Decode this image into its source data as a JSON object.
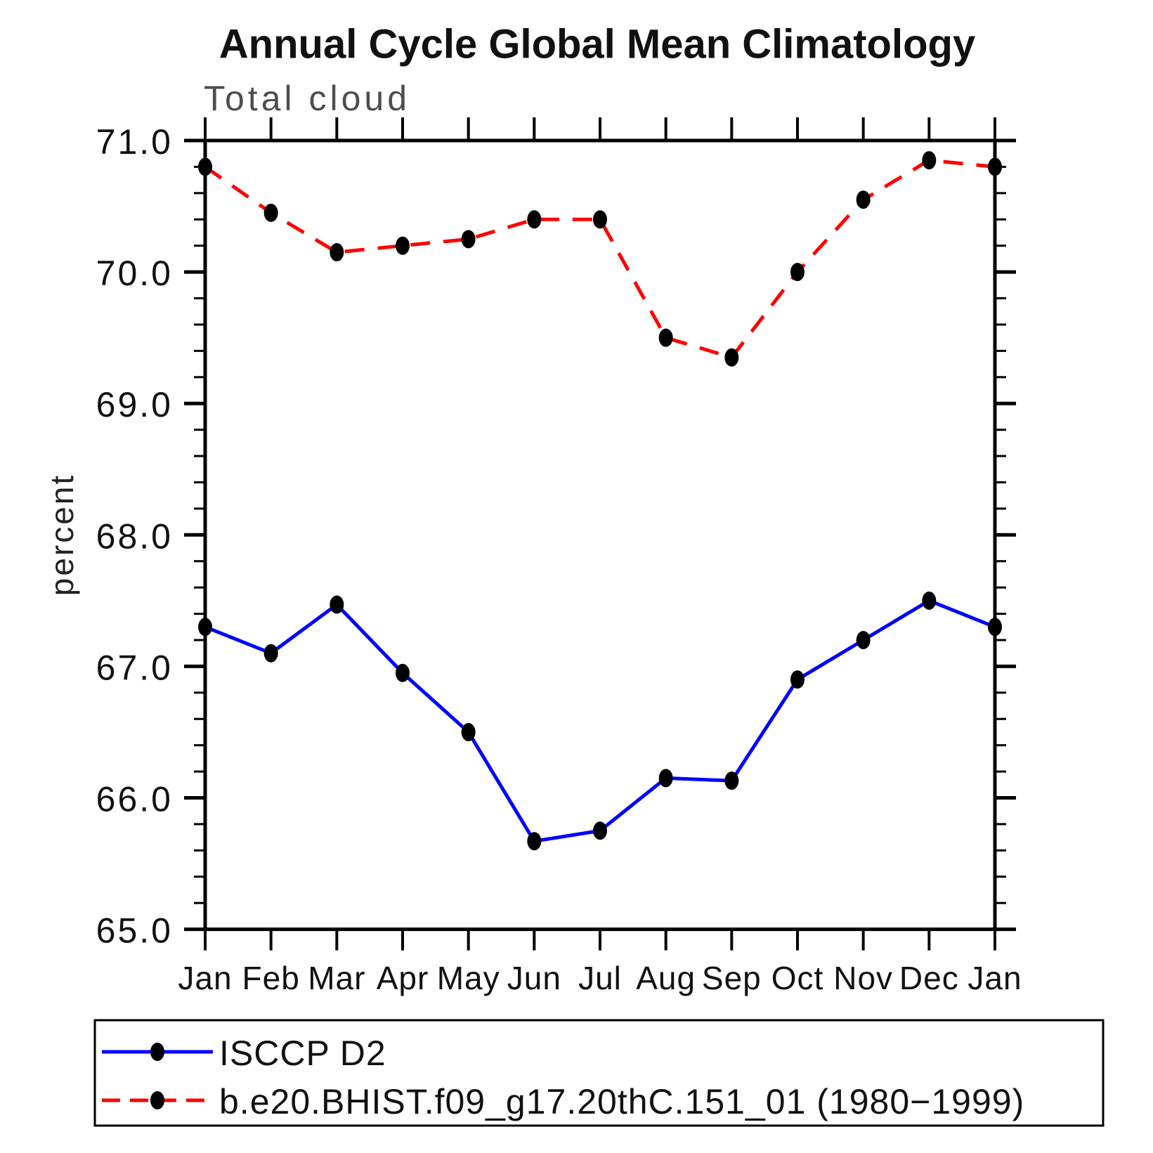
{
  "title": "Annual Cycle Global Mean Climatology",
  "subtitle": "Total cloud",
  "ylabel": "percent",
  "colors": {
    "obs": "#0000ff",
    "model": "#ff0000",
    "marker": "#000000",
    "axis": "#000000",
    "subtitle_gray": "#4d4d4d"
  },
  "legend": [
    {
      "label": "ISCCP D2",
      "color": "#0000ff",
      "style": "solid",
      "marker": "filled-circle"
    },
    {
      "label": "b.e20.BHIST.f09_g17.20thC.151_01 (1980−1999)",
      "color": "#ff0000",
      "style": "dashed",
      "marker": "filled-circle"
    }
  ],
  "chart_data": {
    "type": "line",
    "title": "Annual Cycle Global Mean Climatology",
    "subtitle": "Total cloud",
    "xlabel": "",
    "ylabel": "percent",
    "x_tick_labels": [
      "Jan",
      "Feb",
      "Mar",
      "Apr",
      "May",
      "Jun",
      "Jul",
      "Aug",
      "Sep",
      "Oct",
      "Nov",
      "Dec",
      "Jan"
    ],
    "y_ticks": [
      65.0,
      66.0,
      67.0,
      68.0,
      69.0,
      70.0,
      71.0
    ],
    "y_tick_labels": [
      "65.0",
      "66.0",
      "67.0",
      "68.0",
      "69.0",
      "70.0",
      "71.0"
    ],
    "ylim": [
      65.0,
      71.0
    ],
    "y_minor_step": 0.2,
    "grid": false,
    "legend_position": "bottom",
    "series": [
      {
        "name": "ISCCP D2",
        "color": "#0000ff",
        "line_style": "solid",
        "marker": "circle",
        "values": [
          67.3,
          67.1,
          67.47,
          66.95,
          66.5,
          65.67,
          65.75,
          66.15,
          66.13,
          66.9,
          67.2,
          67.5,
          67.3
        ]
      },
      {
        "name": "b.e20.BHIST.f09_g17.20thC.151_01 (1980−1999)",
        "color": "#ff0000",
        "line_style": "dashed",
        "marker": "circle",
        "values": [
          70.8,
          70.45,
          70.15,
          70.2,
          70.25,
          70.4,
          70.4,
          69.5,
          69.35,
          70.0,
          70.55,
          70.85,
          70.8
        ]
      }
    ]
  }
}
